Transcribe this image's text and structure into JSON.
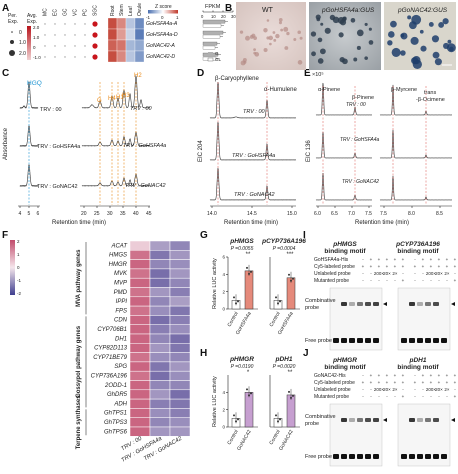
{
  "panel_letters": [
    "A",
    "B",
    "C",
    "D",
    "E",
    "F",
    "G",
    "H",
    "I",
    "J"
  ],
  "a": {
    "size_legend_title": "Per. Exp.",
    "size_legend_values": [
      "0",
      "1.0",
      "2.0"
    ],
    "color_legend_title": "Avg. Exp.",
    "color_legend_values": [
      "2.0",
      "1.0",
      "0",
      "-1.0"
    ],
    "cell_types": [
      "MC",
      "EC",
      "GC",
      "VC",
      "PC",
      "SGC"
    ],
    "genes": [
      "GoHSFA4a-A",
      "GoHSFA4a-D",
      "GoNAC42-A",
      "GoNAC42-D"
    ],
    "tissues": [
      "Root",
      "Stem",
      "Leaf",
      "Ovule"
    ],
    "zscore_title": "Z score",
    "zscore_ticks": [
      "-1",
      "0",
      "1"
    ],
    "fpkm_title": "FPKM",
    "fpkm_ticks": [
      "0",
      "10",
      "20",
      "30"
    ],
    "bar_legend": [
      "G",
      "GL"
    ],
    "heat": [
      [
        0.9,
        0.6,
        -0.4,
        -0.8
      ],
      [
        0.9,
        0.5,
        -0.3,
        -0.9
      ],
      [
        0.8,
        0.7,
        -0.5,
        -0.6
      ],
      [
        0.9,
        0.6,
        -0.4,
        -0.7
      ]
    ],
    "fpkm_values": [
      [
        22,
        18
      ],
      [
        20,
        17
      ],
      [
        14,
        12
      ],
      [
        15,
        13
      ]
    ]
  },
  "b": {
    "labels": [
      "WT",
      "pGoHSFA4a:GUS",
      "pGoNAC42:GUS"
    ]
  },
  "c": {
    "hgg_label": "HGQ",
    "traces": [
      "TRV : 00",
      "TRV : GoHSFA4a",
      "TRV : GoNAC42"
    ],
    "peak_labels": [
      "G",
      "H4",
      "H1",
      "H3",
      "H2"
    ],
    "y_label": "Absorbance",
    "x_label": "Retention time (min)",
    "x1_ticks": [
      "4",
      "5",
      "6"
    ],
    "x2_ticks": [
      "20",
      "25",
      "30",
      "35",
      "40",
      "45"
    ]
  },
  "d": {
    "peaks": [
      "β-Caryophyllene",
      "α-Humulene"
    ],
    "traces": [
      "TRV : 00",
      "TRV : GoHSFA4a",
      "TRV : GoNAC42"
    ],
    "y_label": "EIC 204",
    "x_label": "Retention time (min)",
    "x_ticks": [
      "14.0",
      "14.5",
      "15.0"
    ]
  },
  "e": {
    "scale": "×10⁵",
    "peaks": [
      "α-Pinene",
      "β-Pinene",
      "β-Myrcene",
      "trans-β-Ocimene"
    ],
    "traces": [
      "TRV : 00",
      "TRV : GoHSFA4a",
      "TRV : GoNAC42"
    ],
    "y_label": "EIC 136",
    "x_label": "Retention time (min)",
    "x1_ticks": [
      "6.0",
      "6.5",
      "7.0",
      "7.5"
    ],
    "x2_ticks": [
      "7.5",
      "8.0",
      "8.5"
    ]
  },
  "f": {
    "scale_ticks": [
      "2",
      "1",
      "0",
      "-1",
      "-2"
    ],
    "groups": [
      "MVA pathway genes",
      "Gossypol pathway genes",
      "Terpene synthases"
    ],
    "genes": [
      "ACAT",
      "HMGS",
      "HMGR",
      "MVK",
      "MVP",
      "PMD",
      "IPPI",
      "FPS",
      "CDN",
      "CYP706B1",
      "DH1",
      "CYP82D113",
      "CYP71BE79",
      "SPG",
      "CYP736A196",
      "2ODD-1",
      "GhDR5",
      "ADH",
      "GhTPS1",
      "GhTPS3",
      "GhTPS6"
    ],
    "columns": [
      "TRV : 00",
      "TRV : GoHSFA4a",
      "TRV : GoNAC42"
    ],
    "values": [
      [
        0.2,
        -0.9,
        -1.2
      ],
      [
        0.9,
        -1.4,
        -1.0
      ],
      [
        1.0,
        -1.2,
        -1.1
      ],
      [
        0.9,
        -1.5,
        -1.0
      ],
      [
        1.0,
        -1.5,
        -1.2
      ],
      [
        0.9,
        -1.0,
        -1.3
      ],
      [
        1.0,
        -1.2,
        -0.9
      ],
      [
        0.9,
        -1.1,
        -1.4
      ],
      [
        1.0,
        -1.5,
        -1.3
      ],
      [
        1.0,
        -1.3,
        -1.1
      ],
      [
        1.0,
        -1.2,
        -1.5
      ],
      [
        1.0,
        -1.0,
        -1.4
      ],
      [
        0.9,
        -1.1,
        -1.2
      ],
      [
        1.0,
        -1.4,
        -1.0
      ],
      [
        0.9,
        -1.5,
        -1.1
      ],
      [
        1.0,
        -1.2,
        -1.2
      ],
      [
        1.0,
        -1.0,
        -1.5
      ],
      [
        1.0,
        -1.3,
        -1.4
      ],
      [
        1.0,
        -1.1,
        -1.3
      ],
      [
        1.0,
        -1.2,
        -1.1
      ],
      [
        1.0,
        -1.0,
        -1.0
      ]
    ]
  },
  "g": {
    "titles": [
      "pHMGS",
      "pCYP736A196"
    ],
    "p_values": [
      "P =0.0055",
      "P =0.0004"
    ],
    "stars": [
      "**",
      "***"
    ],
    "y_label": "Relative LUC activity",
    "x_labels": [
      "Control",
      "GoHSFA4a"
    ],
    "y_ticks": [
      "0",
      "2",
      "4",
      "6"
    ],
    "bars": [
      [
        1.0,
        4.4
      ],
      [
        1.0,
        3.6
      ]
    ]
  },
  "h": {
    "titles": [
      "pHMGR",
      "pDH1"
    ],
    "p_values": [
      "P =0.0190",
      "P =0.0020"
    ],
    "stars": [
      "*",
      "**"
    ],
    "y_label": "Relative LUC activity",
    "x_labels": [
      "Control",
      "GoNAC42"
    ],
    "y_ticks": [
      "0",
      "2",
      "4"
    ],
    "bars": [
      [
        1.0,
        4.0
      ],
      [
        1.0,
        3.7
      ]
    ]
  },
  "i": {
    "titles": [
      "pHMGS",
      "pCYP736A196"
    ],
    "subtitle": "binding motif",
    "rows": [
      "GoHSFA4a-His",
      "Cy5-labeled probe",
      "Unlabeled probe",
      "Mutanted probe"
    ],
    "row1": [
      "-",
      "+",
      "+",
      "+",
      "+",
      "+"
    ],
    "row2": [
      "+",
      "+",
      "+",
      "+",
      "+",
      "+"
    ],
    "row3": [
      "-",
      "-",
      "200×",
      "20×",
      "2×",
      "-"
    ],
    "row4": [
      "-",
      "-",
      "-",
      "-",
      "-",
      "+"
    ],
    "side": [
      "Combinative probe",
      "Free probe"
    ]
  },
  "j": {
    "titles": [
      "pHMGR",
      "pDH1"
    ],
    "subtitle": "binding motif",
    "rows": [
      "GoNAC42-His",
      "Cy5-labeled probe",
      "Unlabeled probe",
      "Mutanted probe"
    ],
    "row1": [
      "-",
      "+",
      "+",
      "+",
      "+",
      "+"
    ],
    "row2": [
      "+",
      "+",
      "+",
      "+",
      "+",
      "+"
    ],
    "row3": [
      "-",
      "-",
      "200×",
      "20×",
      "2×",
      "-"
    ],
    "row4": [
      "-",
      "-",
      "-",
      "-",
      "-",
      "+"
    ],
    "side": [
      "Combinative probe",
      "Free probe"
    ]
  }
}
